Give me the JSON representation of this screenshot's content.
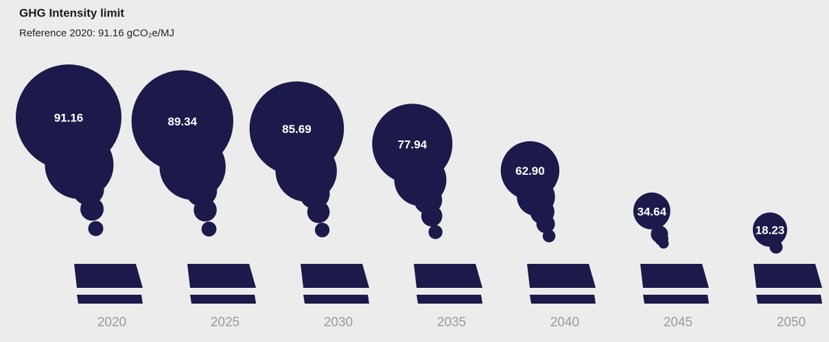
{
  "chart_data": {
    "type": "smoke",
    "title": "GHG Intensity limit",
    "subtitle": "Reference 2020: 91.16 gCO₂e/MJ",
    "categories": [
      "2020",
      "2025",
      "2030",
      "2035",
      "2040",
      "2045",
      "2050"
    ],
    "values": [
      91.16,
      89.34,
      85.69,
      77.94,
      62.9,
      34.64,
      18.23
    ],
    "value_labels": [
      "91.16",
      "89.34",
      "85.69",
      "77.94",
      "62.90",
      "34.64",
      "18.23"
    ],
    "color": "#1b1a4a"
  }
}
